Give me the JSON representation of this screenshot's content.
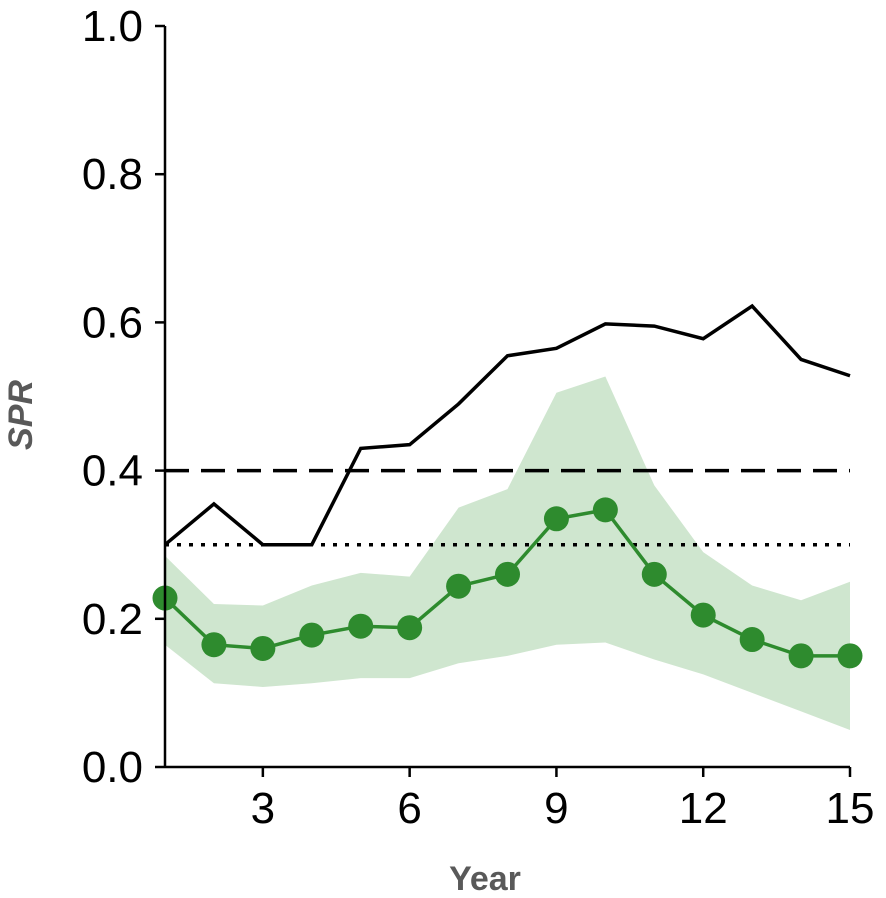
{
  "chart_data": {
    "type": "line",
    "xlabel": "Year",
    "ylabel": "SPR",
    "xlim": [
      1,
      15
    ],
    "ylim": [
      0,
      1
    ],
    "x_ticks": [
      3,
      6,
      9,
      12,
      15
    ],
    "x_tick_labels": [
      "3",
      "6",
      "9",
      "12",
      "15"
    ],
    "y_ticks": [
      0,
      0.2,
      0.4,
      0.6,
      0.8,
      1.0
    ],
    "y_tick_labels": [
      "0.0",
      "0.2",
      "0.4",
      "0.6",
      "0.8",
      "1.0"
    ],
    "grid": false,
    "legend": "none",
    "x": [
      1,
      2,
      3,
      4,
      5,
      6,
      7,
      8,
      9,
      10,
      11,
      12,
      13,
      14,
      15
    ],
    "series": [
      {
        "style": "solid black line",
        "color": "#000000",
        "values": [
          0.3,
          0.355,
          0.3,
          0.3,
          0.43,
          0.435,
          0.49,
          0.555,
          0.565,
          0.598,
          0.595,
          0.578,
          0.622,
          0.55,
          0.528
        ]
      },
      {
        "style": "green line with circle markers and shaded band",
        "color": "#2e8b2e",
        "band_color": "#cfe6cf",
        "values": [
          0.228,
          0.165,
          0.16,
          0.178,
          0.19,
          0.188,
          0.244,
          0.26,
          0.335,
          0.347,
          0.26,
          0.205,
          0.172,
          0.15,
          0.15
        ],
        "band_upper": [
          0.285,
          0.22,
          0.218,
          0.245,
          0.262,
          0.257,
          0.35,
          0.375,
          0.505,
          0.527,
          0.38,
          0.29,
          0.245,
          0.225,
          0.25
        ],
        "band_lower": [
          0.165,
          0.113,
          0.108,
          0.113,
          0.12,
          0.12,
          0.14,
          0.15,
          0.165,
          0.168,
          0.145,
          0.125,
          0.1,
          0.075,
          0.05
        ]
      }
    ],
    "reference_lines": [
      {
        "y": 0.4,
        "style": "dashed",
        "color": "#000000"
      },
      {
        "y": 0.3,
        "style": "dotted",
        "color": "#000000"
      }
    ]
  }
}
